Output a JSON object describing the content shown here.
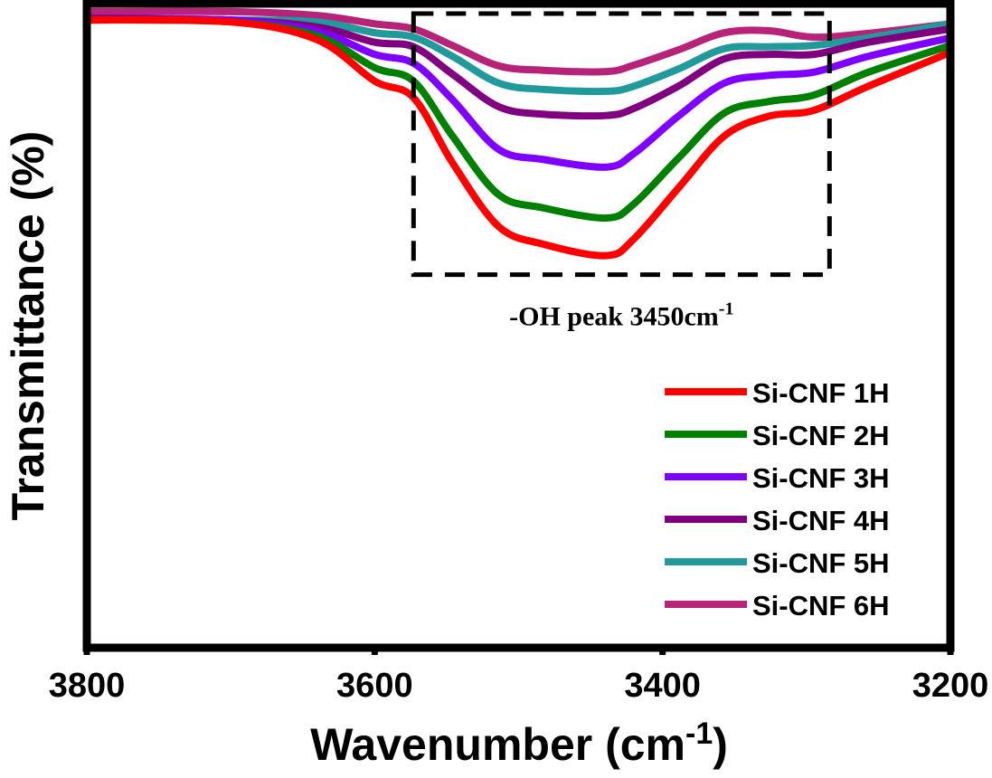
{
  "chart_data": {
    "type": "line",
    "title": "",
    "xlabel": "Wavenumber (cm",
    "xlabel_sup": "-1",
    "xlabel_close": ")",
    "ylabel": "Transmittance (%)",
    "xlim": [
      3800,
      3200
    ],
    "ylim": [
      0,
      100
    ],
    "x_reversed": true,
    "y_ticks_shown": false,
    "grid": false,
    "x_ticks": [
      3800,
      3600,
      3400,
      3200
    ],
    "x_tick_labels": [
      "3800",
      "3600",
      "3400",
      "3200"
    ],
    "legend": {
      "placement": "bottom-right"
    },
    "annotation": {
      "text": "-OH peak 3450cm",
      "text_sup": "-1",
      "box_x_range": [
        3573,
        3284
      ],
      "box_y_range": [
        58,
        99
      ]
    },
    "x": [
      3800,
      3700,
      3640,
      3600,
      3573,
      3546,
      3514,
      3483,
      3439,
      3420,
      3389,
      3357,
      3326,
      3295,
      3257,
      3200
    ],
    "series": [
      {
        "name": "Si-CNF 1H",
        "color": "#ff0000",
        "values": [
          98.0,
          97.7,
          94.9,
          88.4,
          85.8,
          75.6,
          65.6,
          62.8,
          61.0,
          63.6,
          71.6,
          79.8,
          82.9,
          83.8,
          87.6,
          92.9
        ]
      },
      {
        "name": "Si-CNF 2H",
        "color": "#008000",
        "values": [
          98.0,
          97.7,
          95.5,
          90.5,
          88.4,
          79.8,
          70.6,
          68.5,
          66.9,
          69.1,
          76.3,
          83.4,
          85.2,
          86.2,
          89.8,
          94.0
        ]
      },
      {
        "name": "Si-CNF 3H",
        "color": "#8000ff",
        "values": [
          98.0,
          98.0,
          96.2,
          92.6,
          91.2,
          85.5,
          77.7,
          76.1,
          74.9,
          77.0,
          82.9,
          88.1,
          89.3,
          89.8,
          92.3,
          95.2
        ]
      },
      {
        "name": "Si-CNF 4H",
        "color": "#800080",
        "values": [
          98.3,
          98.0,
          96.9,
          94.5,
          93.8,
          89.5,
          84.4,
          83.2,
          83.0,
          84.1,
          87.6,
          91.9,
          92.6,
          92.6,
          94.5,
          96.6
        ]
      },
      {
        "name": "Si-CNF 5H",
        "color": "#209a9a",
        "values": [
          98.0,
          98.0,
          97.7,
          96.0,
          95.3,
          92.3,
          88.1,
          87.1,
          86.8,
          87.6,
          90.3,
          93.5,
          93.8,
          94.0,
          95.2,
          97.4
        ]
      },
      {
        "name": "Si-CNF 6H",
        "color": "#b8237a",
        "values": [
          99.3,
          99.3,
          98.7,
          97.4,
          96.6,
          94.0,
          90.8,
          90.1,
          89.9,
          90.9,
          93.3,
          96.0,
          96.3,
          95.3,
          95.9,
          97.4
        ]
      }
    ]
  }
}
